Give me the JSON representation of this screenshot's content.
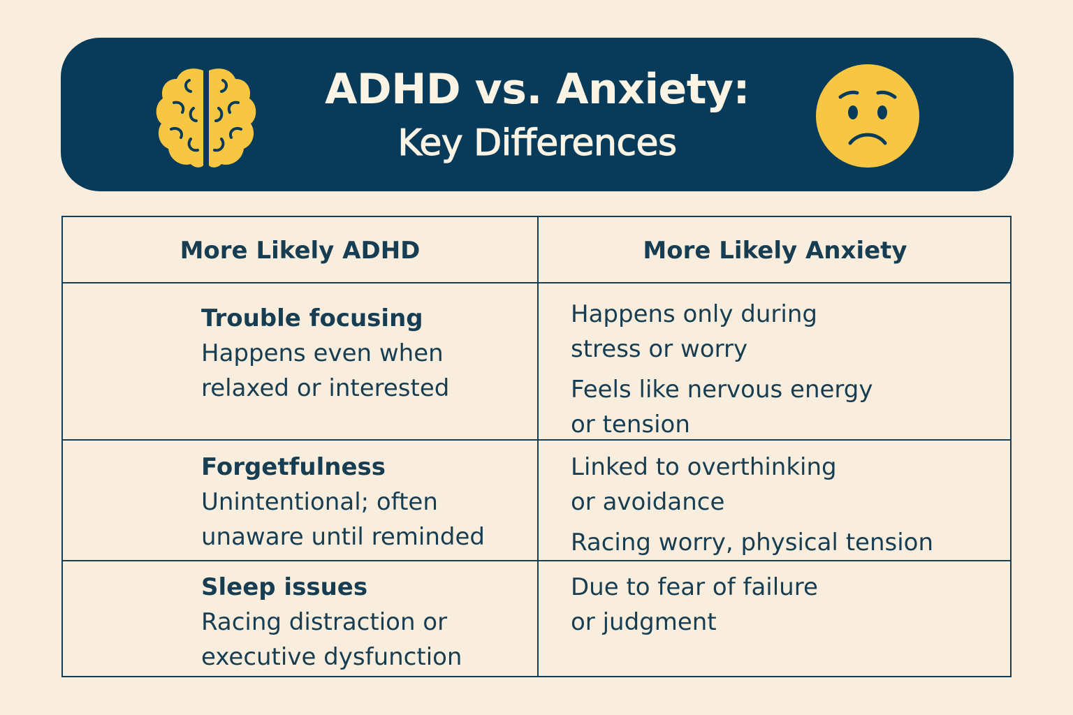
{
  "banner": {
    "title_line1": "ADHD vs. Anxiety:",
    "title_line2": "Key Differences",
    "left_icon": "brain-icon",
    "right_icon": "worried-face-icon",
    "background_color": "#073b59",
    "icon_color": "#f7c744"
  },
  "table": {
    "headers": [
      "More Likely ADHD",
      "More Likely Anxiety"
    ],
    "rows": [
      {
        "adhd_term": "Trouble focusing",
        "adhd_desc": [
          "Happens even when",
          "relaxed or interested"
        ],
        "anxiety_paragraphs": [
          [
            "Happens only during",
            "stress or worry"
          ],
          [
            "Feels like nervous energy",
            "or tension"
          ]
        ]
      },
      {
        "adhd_term": "Forgetfulness",
        "adhd_desc": [
          "Unintentional; often",
          "unaware until reminded"
        ],
        "anxiety_paragraphs": [
          [
            "Linked to overthinking",
            "or avoidance"
          ],
          [
            "Racing worry, physical tension"
          ]
        ]
      },
      {
        "adhd_term": "Sleep issues",
        "adhd_desc": [
          "Racing distraction or",
          "executive dysfunction"
        ],
        "anxiety_paragraphs": [
          [
            "Due to fear of failure",
            "or judgment"
          ]
        ]
      }
    ]
  }
}
